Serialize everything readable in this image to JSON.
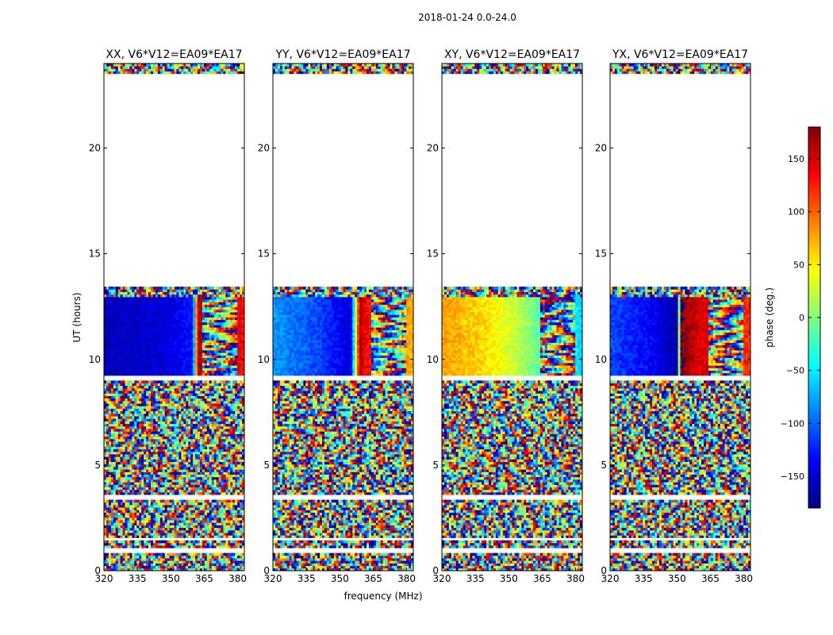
{
  "figure": {
    "suptitle": "2018-01-24 0.0-24.0",
    "xlabel": "frequency (MHz)",
    "ylabel": "UT (hours)",
    "colorbar_label": "phase (deg.)"
  },
  "chart_data": {
    "type": "heatmap",
    "panels": [
      {
        "title": "XX, V6*V12=EA09*EA17",
        "pol": "XX"
      },
      {
        "title": "YY, V6*V12=EA09*EA17",
        "pol": "YY"
      },
      {
        "title": "XY, V6*V12=EA09*EA17",
        "pol": "XY"
      },
      {
        "title": "YX, V6*V12=EA09*EA17",
        "pol": "YX"
      }
    ],
    "xlim": [
      320,
      383
    ],
    "ylim": [
      0,
      24
    ],
    "xticks": [
      320,
      335,
      350,
      365,
      380
    ],
    "xtick_labels": [
      "320",
      "335",
      "350",
      "365",
      "380"
    ],
    "yticks": [
      0,
      5,
      10,
      15,
      20
    ],
    "ytick_labels": [
      "0",
      "5",
      "10",
      "15",
      "20"
    ],
    "colorbar": {
      "range": [
        -180,
        180
      ],
      "ticks": [
        -150,
        -100,
        -50,
        0,
        50,
        100,
        150
      ],
      "tick_labels": [
        "−150",
        "−100",
        "−50",
        "0",
        "50",
        "100",
        "150"
      ],
      "colormap": "jet"
    },
    "data_hour_ranges": [
      [
        0.0,
        0.8
      ],
      [
        1.1,
        1.4
      ],
      [
        1.6,
        3.4
      ],
      [
        3.6,
        9.0
      ],
      [
        9.3,
        13.4
      ],
      [
        23.5,
        24.0
      ]
    ],
    "coherent_block_hours": [
      9.0,
      13.0
    ],
    "coherent_phase_trend": [
      {
        "pol": "XX",
        "freq": [
          320,
          345,
          360,
          362,
          364,
          380,
          383
        ],
        "phase": [
          -160,
          -150,
          -130,
          160,
          160,
          140,
          130
        ]
      },
      {
        "pol": "YY",
        "freq": [
          320,
          340,
          355,
          359,
          361,
          380,
          383
        ],
        "phase": [
          -80,
          -110,
          -150,
          170,
          140,
          80,
          70
        ]
      },
      {
        "pol": "XY",
        "freq": [
          320,
          340,
          355,
          365,
          380,
          383
        ],
        "phase": [
          80,
          55,
          20,
          -20,
          -50,
          -60
        ]
      },
      {
        "pol": "YX",
        "freq": [
          320,
          340,
          350,
          352,
          360,
          383
        ],
        "phase": [
          -110,
          -140,
          -165,
          175,
          150,
          120
        ]
      }
    ]
  }
}
